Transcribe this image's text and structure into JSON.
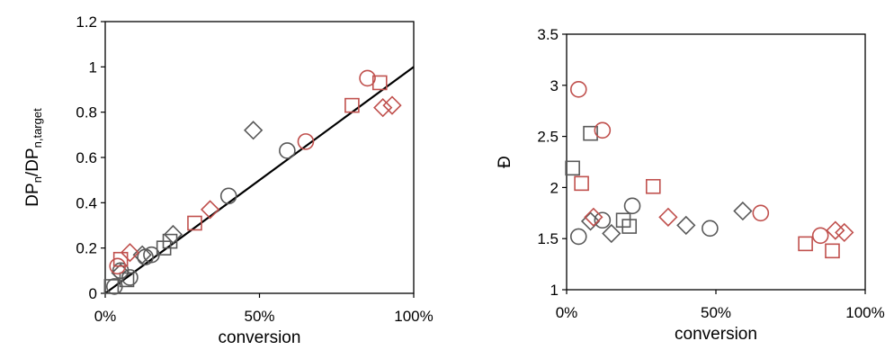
{
  "chart_data": [
    {
      "type": "scatter",
      "panel": "left",
      "title": "",
      "xlabel": "conversion",
      "ylabel_main": "DP",
      "ylabel_sub1": "n",
      "ylabel_mid": "/DP",
      "ylabel_sub2": "n,target",
      "xlim": [
        0,
        1
      ],
      "ylim": [
        0,
        1.2
      ],
      "xticks": [
        0,
        0.5,
        1
      ],
      "xtick_labels": [
        "0%",
        "50%",
        "100%"
      ],
      "yticks": [
        0,
        0.2,
        0.4,
        0.6,
        0.8,
        1,
        1.2
      ],
      "ytick_labels": [
        "0",
        "0.2",
        "0.4",
        "0.6",
        "0.8",
        "1",
        "1.2"
      ],
      "grid": false,
      "legend": "none",
      "colors": {
        "gray": "#595959",
        "red": "#c0504d",
        "line": "#000000"
      },
      "reference_line": {
        "x": [
          0,
          1
        ],
        "y": [
          0,
          1
        ]
      },
      "series": [
        {
          "marker": "circle",
          "color": "gray",
          "x": [
            0.03,
            0.05,
            0.08,
            0.13,
            0.15,
            0.4,
            0.59
          ],
          "y": [
            0.03,
            0.1,
            0.07,
            0.16,
            0.17,
            0.43,
            0.63
          ]
        },
        {
          "marker": "square",
          "color": "gray",
          "x": [
            0.02,
            0.07,
            0.19,
            0.21
          ],
          "y": [
            0.03,
            0.06,
            0.2,
            0.23
          ]
        },
        {
          "marker": "diamond",
          "color": "gray",
          "x": [
            0.05,
            0.12,
            0.22,
            0.48
          ],
          "y": [
            0.09,
            0.17,
            0.26,
            0.72
          ]
        },
        {
          "marker": "circle",
          "color": "red",
          "x": [
            0.04,
            0.65,
            0.85
          ],
          "y": [
            0.12,
            0.67,
            0.95
          ]
        },
        {
          "marker": "square",
          "color": "red",
          "x": [
            0.05,
            0.29,
            0.8,
            0.89
          ],
          "y": [
            0.15,
            0.31,
            0.83,
            0.93
          ]
        },
        {
          "marker": "diamond",
          "color": "red",
          "x": [
            0.08,
            0.34,
            0.9,
            0.93
          ],
          "y": [
            0.18,
            0.37,
            0.82,
            0.83
          ]
        }
      ]
    },
    {
      "type": "scatter",
      "panel": "right",
      "title": "",
      "xlabel": "conversion",
      "ylabel": "Đ",
      "xlim": [
        0,
        1
      ],
      "ylim": [
        1,
        3.5
      ],
      "xticks": [
        0,
        0.5,
        1
      ],
      "xtick_labels": [
        "0%",
        "50%",
        "100%"
      ],
      "yticks": [
        1,
        1.5,
        2,
        2.5,
        3,
        3.5
      ],
      "ytick_labels": [
        "1",
        "1.5",
        "2",
        "2.5",
        "3",
        "3.5"
      ],
      "grid": false,
      "legend": "none",
      "colors": {
        "gray": "#595959",
        "red": "#c0504d"
      },
      "series": [
        {
          "marker": "circle",
          "color": "gray",
          "x": [
            0.04,
            0.12,
            0.22,
            0.48
          ],
          "y": [
            1.52,
            1.68,
            1.82,
            1.6
          ]
        },
        {
          "marker": "square",
          "color": "gray",
          "x": [
            0.02,
            0.08,
            0.19,
            0.21
          ],
          "y": [
            2.19,
            2.53,
            1.68,
            1.62
          ]
        },
        {
          "marker": "diamond",
          "color": "gray",
          "x": [
            0.08,
            0.15,
            0.4,
            0.59
          ],
          "y": [
            1.67,
            1.55,
            1.63,
            1.77
          ]
        },
        {
          "marker": "circle",
          "color": "red",
          "x": [
            0.04,
            0.12,
            0.65,
            0.85
          ],
          "y": [
            2.96,
            2.56,
            1.75,
            1.53
          ]
        },
        {
          "marker": "square",
          "color": "red",
          "x": [
            0.05,
            0.29,
            0.8,
            0.89
          ],
          "y": [
            2.04,
            2.01,
            1.45,
            1.38
          ]
        },
        {
          "marker": "diamond",
          "color": "red",
          "x": [
            0.09,
            0.34,
            0.9,
            0.93
          ],
          "y": [
            1.71,
            1.71,
            1.58,
            1.56
          ]
        }
      ]
    }
  ]
}
